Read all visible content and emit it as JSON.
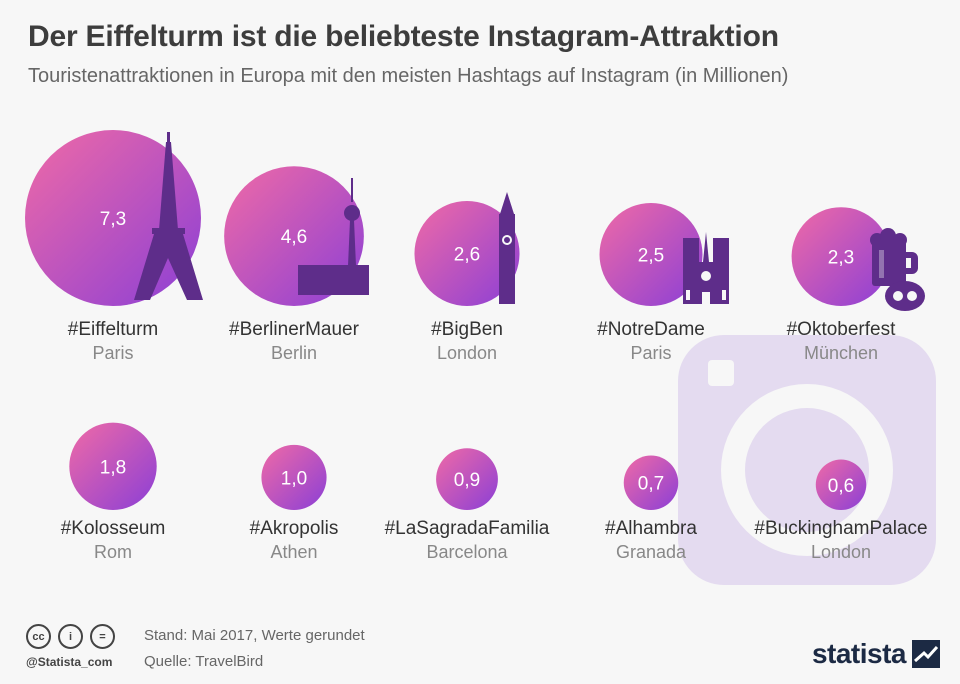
{
  "header": {
    "title": "Der Eiffelturm ist die beliebteste Instagram-Attraktion",
    "subtitle": "Touristenattraktionen in Europa mit den meisten Hashtags auf Instagram (in Millionen)"
  },
  "chart_data": {
    "type": "bubble",
    "title": "Der Eiffelturm ist die beliebteste Instagram-Attraktion",
    "subtitle": "Touristenattraktionen in Europa mit den meisten Hashtags auf Instagram (in Millionen)",
    "unit": "Millionen",
    "items": [
      {
        "hashtag": "#Eiffelturm",
        "city": "Paris",
        "value": 7.3,
        "label": "7,3",
        "icon": "eiffel-tower-icon"
      },
      {
        "hashtag": "#BerlinerMauer",
        "city": "Berlin",
        "value": 4.6,
        "label": "4,6",
        "icon": "tv-tower-wall-icon"
      },
      {
        "hashtag": "#BigBen",
        "city": "London",
        "value": 2.6,
        "label": "2,6",
        "icon": "big-ben-icon"
      },
      {
        "hashtag": "#NotreDame",
        "city": "Paris",
        "value": 2.5,
        "label": "2,5",
        "icon": "notre-dame-icon"
      },
      {
        "hashtag": "#Oktoberfest",
        "city": "München",
        "value": 2.3,
        "label": "2,3",
        "icon": "beer-pretzel-icon"
      },
      {
        "hashtag": "#Kolosseum",
        "city": "Rom",
        "value": 1.8,
        "label": "1,8"
      },
      {
        "hashtag": "#Akropolis",
        "city": "Athen",
        "value": 1.0,
        "label": "1,0"
      },
      {
        "hashtag": "#LaSagradaFamilia",
        "city": "Barcelona",
        "value": 0.9,
        "label": "0,9"
      },
      {
        "hashtag": "#Alhambra",
        "city": "Granada",
        "value": 0.7,
        "label": "0,7"
      },
      {
        "hashtag": "#BuckinghamPalace",
        "city": "London",
        "value": 0.6,
        "label": "0,6"
      }
    ],
    "colors": {
      "gradient_start": "#f06aa6",
      "gradient_end": "#8b3fd6",
      "icon": "#5e2d8a",
      "label_hashtag": "#333333",
      "label_city": "#888888"
    }
  },
  "footer": {
    "license_icons": [
      "cc-icon",
      "by-icon",
      "nd-icon"
    ],
    "license_glyphs": [
      "cc",
      "i",
      "="
    ],
    "handle": "@Statista_com",
    "note": "Stand: Mai 2017, Werte gerundet",
    "source": "Quelle: TravelBird",
    "brand": "statista"
  }
}
